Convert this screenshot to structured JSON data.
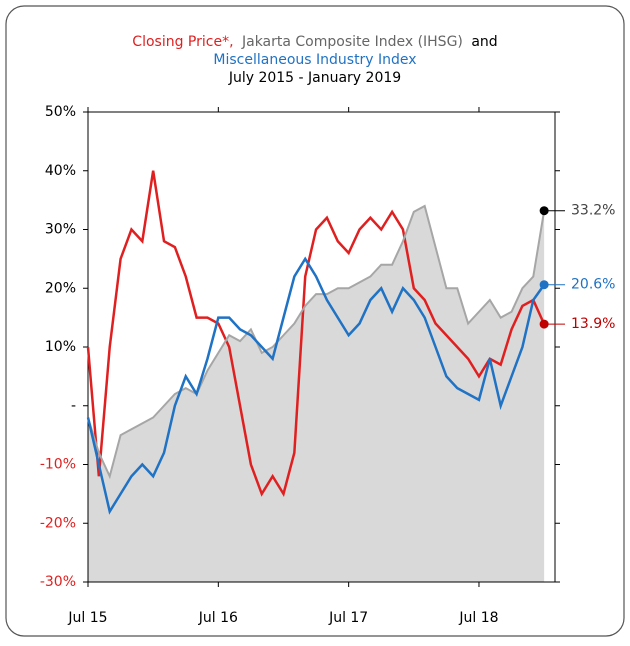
{
  "chart_data": {
    "type": "line",
    "title_separator": ",",
    "title_conjunction": "and",
    "subtitle": "July 2015 - January 2019",
    "x": [
      "2015-07",
      "2015-08",
      "2015-09",
      "2015-10",
      "2015-11",
      "2015-12",
      "2016-01",
      "2016-02",
      "2016-03",
      "2016-04",
      "2016-05",
      "2016-06",
      "2016-07",
      "2016-08",
      "2016-09",
      "2016-10",
      "2016-11",
      "2016-12",
      "2017-01",
      "2017-02",
      "2017-03",
      "2017-04",
      "2017-05",
      "2017-06",
      "2017-07",
      "2017-08",
      "2017-09",
      "2017-10",
      "2017-11",
      "2017-12",
      "2018-01",
      "2018-02",
      "2018-03",
      "2018-04",
      "2018-05",
      "2018-06",
      "2018-07",
      "2018-08",
      "2018-09",
      "2018-10",
      "2018-11",
      "2018-12",
      "2019-01"
    ],
    "xlim": [
      "2015-07",
      "2019-02"
    ],
    "xticks": [
      {
        "value": "2015-07",
        "label": "Jul 15"
      },
      {
        "value": "2016-07",
        "label": "Jul 16"
      },
      {
        "value": "2017-07",
        "label": "Jul 17"
      },
      {
        "value": "2018-07",
        "label": "Jul 18"
      }
    ],
    "ylim": [
      -30,
      50
    ],
    "yticks": [
      {
        "value": -30,
        "label": "-30%"
      },
      {
        "value": -20,
        "label": "-20%"
      },
      {
        "value": -10,
        "label": "-10%"
      },
      {
        "value": 0,
        "label": "-"
      },
      {
        "value": 10,
        "label": "10%"
      },
      {
        "value": 20,
        "label": "20%"
      },
      {
        "value": 30,
        "label": "30%"
      },
      {
        "value": 40,
        "label": "40%"
      },
      {
        "value": 50,
        "label": "50%"
      }
    ],
    "negative_tick_color": "#e02020",
    "series": [
      {
        "name": "Closing Price*",
        "color": "#e02020",
        "style": "line",
        "values": [
          10,
          -12,
          10,
          25,
          30,
          28,
          40,
          28,
          27,
          22,
          15,
          15,
          14,
          10,
          0,
          -10,
          -15,
          -12,
          -15,
          -8,
          22,
          30,
          32,
          28,
          26,
          30,
          32,
          30,
          33,
          30,
          20,
          18,
          14,
          12,
          10,
          8,
          5,
          8,
          7,
          13,
          17,
          18,
          13.9
        ],
        "end_label": "13.9%",
        "end_color": "#c00000"
      },
      {
        "name": "Jakarta Composite Index (IHSG)",
        "color": "#a6a6a6",
        "area_color": "#d9d9d9",
        "style": "area",
        "values": [
          -2,
          -8,
          -12,
          -5,
          -4,
          -3,
          -2,
          0,
          2,
          3,
          2,
          6,
          9,
          12,
          11,
          13,
          9,
          10,
          12,
          14,
          17,
          19,
          19,
          20,
          20,
          21,
          22,
          24,
          24,
          28,
          33,
          34,
          27,
          20,
          20,
          14,
          16,
          18,
          15,
          16,
          20,
          22,
          33.2
        ],
        "end_label": "33.2%",
        "end_color": "#000000"
      },
      {
        "name": "Miscellaneous Industry Index",
        "color": "#1f72c4",
        "style": "line",
        "values": [
          -2,
          -10,
          -18,
          -15,
          -12,
          -10,
          -12,
          -8,
          0,
          5,
          2,
          8,
          15,
          15,
          13,
          12,
          10,
          8,
          15,
          22,
          25,
          22,
          18,
          15,
          12,
          14,
          18,
          20,
          16,
          20,
          18,
          15,
          10,
          5,
          3,
          2,
          1,
          8,
          0,
          5,
          10,
          18,
          20.6
        ],
        "end_label": "20.6%",
        "end_color": "#1f72c4"
      }
    ]
  }
}
